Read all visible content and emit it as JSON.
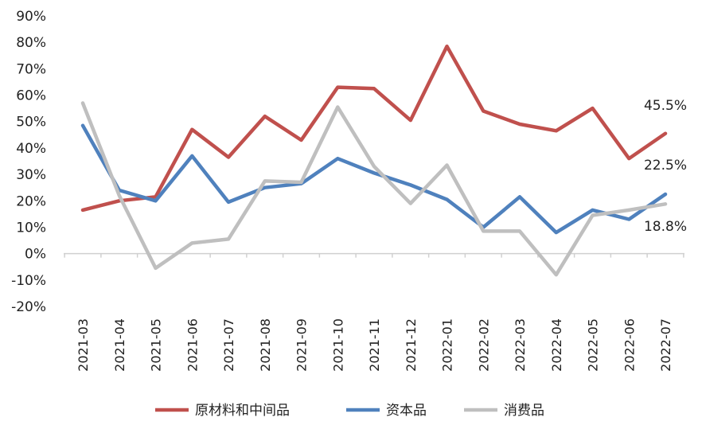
{
  "chart_data": {
    "type": "line",
    "title": "",
    "xlabel": "",
    "ylabel": "",
    "ylim": [
      -20,
      90
    ],
    "yticks": [
      -20,
      -10,
      0,
      10,
      20,
      30,
      40,
      50,
      60,
      70,
      80,
      90
    ],
    "ytick_labels": [
      "-20%",
      "-10%",
      "0%",
      "10%",
      "20%",
      "30%",
      "40%",
      "50%",
      "60%",
      "70%",
      "80%",
      "90%"
    ],
    "grid": false,
    "legend_position": "bottom",
    "categories": [
      "2021-03",
      "2021-04",
      "2021-05",
      "2021-06",
      "2021-07",
      "2021-08",
      "2021-09",
      "2021-10",
      "2021-11",
      "2021-12",
      "2022-01",
      "2022-02",
      "2022-03",
      "2022-04",
      "2022-05",
      "2022-06",
      "2022-07"
    ],
    "series": [
      {
        "name": "原材料和中间品",
        "color": "#c0504d",
        "values": [
          16.5,
          20,
          21.5,
          47,
          36.5,
          52,
          43,
          63,
          62.5,
          50.5,
          78.5,
          54,
          49,
          46.5,
          55,
          36,
          45.5
        ]
      },
      {
        "name": "资本品",
        "color": "#4f81bd",
        "values": [
          48.5,
          24,
          20,
          37,
          19.5,
          25,
          26.5,
          36,
          30.5,
          26,
          20.5,
          10,
          21.5,
          8,
          16.5,
          13,
          22.5
        ]
      },
      {
        "name": "消费品",
        "color": "#bfbfbf",
        "values": [
          57,
          22,
          -5.5,
          4,
          5.5,
          27.5,
          27,
          55.5,
          33,
          19,
          33.5,
          8.5,
          8.5,
          -8,
          14.5,
          16.5,
          18.8
        ]
      }
    ],
    "annotations": [
      {
        "text": "45.5%",
        "series": 0,
        "index": 16
      },
      {
        "text": "22.5%",
        "series": 1,
        "index": 16
      },
      {
        "text": "18.8%",
        "series": 2,
        "index": 16
      }
    ]
  }
}
